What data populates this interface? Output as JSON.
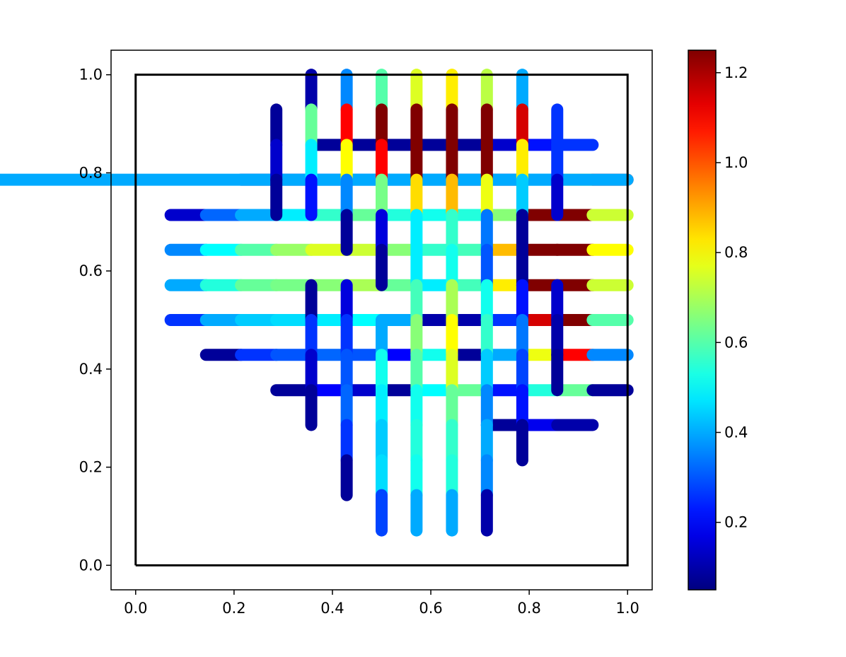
{
  "chart_data": {
    "type": "line",
    "title": "",
    "xlabel": "",
    "ylabel": "",
    "xlim": [
      -0.05,
      1.05
    ],
    "ylim": [
      -0.05,
      1.05
    ],
    "x_ticks": [
      "0.0",
      "0.2",
      "0.4",
      "0.6",
      "0.8",
      "1.0"
    ],
    "y_ticks": [
      "0.0",
      "0.2",
      "0.4",
      "0.6",
      "0.8",
      "1.0"
    ],
    "grid": false,
    "legend": "none",
    "boundary_square": [
      [
        0,
        0
      ],
      [
        1,
        0
      ],
      [
        1,
        1
      ],
      [
        0,
        1
      ],
      [
        0,
        0
      ]
    ],
    "colormap": "jet",
    "colorbar": {
      "vmin": 0.05,
      "vmax": 1.25,
      "ticks": [
        "0.2",
        "0.4",
        "0.6",
        "0.8",
        "1.0",
        "1.2"
      ]
    },
    "horizontal_lines": [
      {
        "y": 0.857,
        "x": [
          0.357,
          0.429,
          0.5,
          0.571,
          0.643,
          0.714,
          0.786,
          0.857,
          0.929
        ],
        "v": [
          0.08,
          0.08,
          0.08,
          0.08,
          0.08,
          0.14,
          0.22,
          0.26
        ]
      },
      {
        "y": 0.786,
        "x": [
          0.214,
          0.286,
          0.357,
          0.429,
          0.5,
          0.571,
          0.643,
          0.714,
          0.786,
          0.857,
          0.929,
          1.0
        ],
        "v": [
          0.08,
          0.14,
          0.26,
          0.32,
          0.36,
          0.32,
          0.08,
          0.08,
          0.42,
          0.8,
          1.1,
          0.4
        ]
      },
      {
        "y": 0.714,
        "x": [
          0.071,
          0.143,
          0.214,
          0.286,
          0.357,
          0.429,
          0.5,
          0.571,
          0.643,
          0.714,
          0.786,
          0.857,
          0.929,
          1.0
        ],
        "v": [
          0.14,
          0.32,
          0.4,
          0.48,
          0.56,
          0.62,
          0.54,
          0.52,
          0.54,
          0.66,
          1.25,
          1.25,
          0.74
        ]
      },
      {
        "y": 0.643,
        "x": [
          0.071,
          0.143,
          0.214,
          0.286,
          0.357,
          0.429,
          0.5,
          0.571,
          0.643,
          0.714,
          0.786,
          0.857,
          0.929,
          1.0
        ],
        "v": [
          0.36,
          0.5,
          0.6,
          0.68,
          0.76,
          0.74,
          0.66,
          0.56,
          0.58,
          0.88,
          1.25,
          1.25,
          0.8
        ]
      },
      {
        "y": 0.571,
        "x": [
          0.071,
          0.143,
          0.214,
          0.286,
          0.357,
          0.429,
          0.5,
          0.571,
          0.643,
          0.714,
          0.786,
          0.857,
          0.929,
          1.0
        ],
        "v": [
          0.4,
          0.54,
          0.62,
          0.64,
          0.66,
          0.7,
          0.62,
          0.48,
          0.58,
          0.82,
          1.25,
          1.25,
          0.74
        ]
      },
      {
        "y": 0.5,
        "x": [
          0.071,
          0.143,
          0.214,
          0.286,
          0.357,
          0.429,
          0.5,
          0.571,
          0.643,
          0.714,
          0.786,
          0.857,
          0.929,
          1.0
        ],
        "v": [
          0.26,
          0.4,
          0.44,
          0.46,
          0.48,
          0.5,
          0.4,
          0.1,
          0.1,
          0.26,
          1.15,
          1.25,
          0.6
        ]
      },
      {
        "y": 0.429,
        "x": [
          0.143,
          0.214,
          0.286,
          0.357,
          0.429,
          0.5,
          0.571,
          0.643,
          0.714,
          0.786,
          0.857,
          0.929,
          1.0
        ],
        "v": [
          0.08,
          0.26,
          0.3,
          0.32,
          0.3,
          0.2,
          0.52,
          0.08,
          0.4,
          0.78,
          1.1,
          0.36
        ]
      },
      {
        "y": 0.357,
        "x": [
          0.286,
          0.357,
          0.429,
          0.5,
          0.571,
          0.643,
          0.714,
          0.786,
          0.857,
          0.929,
          1.0
        ],
        "v": [
          0.08,
          0.2,
          0.14,
          0.08,
          0.5,
          0.62,
          0.22,
          0.54,
          0.62,
          0.08
        ]
      },
      {
        "y": 0.286,
        "x": [
          0.714,
          0.786,
          0.857,
          0.929
        ],
        "v": [
          0.08,
          0.18,
          0.1
        ]
      }
    ],
    "vertical_lines": [
      {
        "x": 0.286,
        "y": [
          0.929,
          0.857,
          0.786,
          0.714
        ],
        "v": [
          0.08,
          0.14,
          0.08
        ]
      },
      {
        "x": 0.357,
        "y": [
          1.0,
          0.929,
          0.857,
          0.786,
          0.714
        ],
        "v": [
          0.1,
          0.62,
          0.48,
          0.22
        ]
      },
      {
        "x": 0.357,
        "y": [
          0.571,
          0.5,
          0.429,
          0.357,
          0.286
        ],
        "v": [
          0.08,
          0.26,
          0.14,
          0.08
        ]
      },
      {
        "x": 0.429,
        "y": [
          1.0,
          0.929,
          0.857,
          0.786,
          0.714,
          0.643
        ],
        "v": [
          0.36,
          1.1,
          0.8,
          0.36,
          0.08
        ]
      },
      {
        "x": 0.429,
        "y": [
          0.571,
          0.5,
          0.429,
          0.357,
          0.286,
          0.214,
          0.143
        ],
        "v": [
          0.16,
          0.26,
          0.3,
          0.32,
          0.26,
          0.08
        ]
      },
      {
        "x": 0.5,
        "y": [
          1.0,
          0.929,
          0.857,
          0.786,
          0.714,
          0.643,
          0.571
        ],
        "v": [
          0.6,
          1.25,
          1.1,
          0.64,
          0.16,
          0.08
        ]
      },
      {
        "x": 0.5,
        "y": [
          0.5,
          0.429,
          0.357,
          0.286,
          0.214,
          0.143,
          0.071
        ],
        "v": [
          0.4,
          0.52,
          0.48,
          0.44,
          0.46,
          0.28
        ]
      },
      {
        "x": 0.571,
        "y": [
          1.0,
          0.929,
          0.857,
          0.786,
          0.714,
          0.643,
          0.571,
          0.5,
          0.429,
          0.357,
          0.286,
          0.214,
          0.143,
          0.071
        ],
        "v": [
          0.76,
          1.25,
          1.25,
          0.84,
          0.48,
          0.48,
          0.58,
          0.66,
          0.6,
          0.52,
          0.54,
          0.52,
          0.4
        ]
      },
      {
        "x": 0.643,
        "y": [
          1.0,
          0.929,
          0.857,
          0.786,
          0.714,
          0.643,
          0.571,
          0.5,
          0.429,
          0.357,
          0.286,
          0.214,
          0.143,
          0.071
        ],
        "v": [
          0.82,
          1.25,
          1.25,
          0.88,
          0.56,
          0.52,
          0.7,
          0.8,
          0.76,
          0.62,
          0.56,
          0.54,
          0.4
        ]
      },
      {
        "x": 0.714,
        "y": [
          1.0,
          0.929,
          0.857,
          0.786,
          0.714,
          0.643,
          0.571,
          0.5,
          0.429,
          0.357,
          0.286,
          0.214,
          0.143,
          0.071
        ],
        "v": [
          0.72,
          1.25,
          1.25,
          0.78,
          0.34,
          0.3,
          0.52,
          0.56,
          0.44,
          0.36,
          0.4,
          0.36,
          0.1
        ]
      },
      {
        "x": 0.786,
        "y": [
          1.0,
          0.929,
          0.857,
          0.786,
          0.714,
          0.643,
          0.571,
          0.5,
          0.429,
          0.357,
          0.286,
          0.214
        ],
        "v": [
          0.4,
          1.15,
          0.82,
          0.44,
          0.08,
          0.08,
          0.22,
          0.34,
          0.28,
          0.22,
          0.08
        ]
      },
      {
        "x": 0.857,
        "y": [
          0.929,
          0.857,
          0.786,
          0.714
        ],
        "v": [
          0.26,
          0.26,
          0.14
        ]
      },
      {
        "x": 0.857,
        "y": [
          0.571,
          0.5,
          0.429,
          0.357
        ],
        "v": [
          0.14,
          0.1,
          0.08
        ]
      }
    ]
  }
}
